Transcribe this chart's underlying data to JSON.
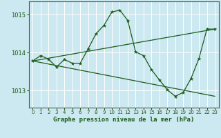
{
  "title": "Graphe pression niveau de la mer (hPa)",
  "bg_color": "#cce8f0",
  "grid_color": "#ffffff",
  "line_color": "#1a5c1a",
  "xlim": [
    -0.5,
    23.5
  ],
  "ylim": [
    1012.55,
    1015.35
  ],
  "yticks": [
    1013,
    1014,
    1015
  ],
  "xticks": [
    0,
    1,
    2,
    3,
    4,
    5,
    6,
    7,
    8,
    9,
    10,
    11,
    12,
    13,
    14,
    15,
    16,
    17,
    18,
    19,
    20,
    21,
    22,
    23
  ],
  "series_main": {
    "x": [
      0,
      1,
      2,
      3,
      4,
      5,
      6,
      7,
      8,
      9,
      10,
      11,
      12,
      13,
      14,
      15,
      16,
      17,
      18,
      19,
      20,
      21,
      22,
      23
    ],
    "y": [
      1013.78,
      1013.92,
      1013.83,
      1013.62,
      1013.82,
      1013.72,
      1013.72,
      1014.1,
      1014.5,
      1014.72,
      1015.07,
      1015.12,
      1014.85,
      1014.02,
      1013.92,
      1013.55,
      1013.28,
      1013.02,
      1012.85,
      1012.95,
      1013.32,
      1013.85,
      1014.62,
      1014.62
    ]
  },
  "series_upper": {
    "x": [
      0,
      23
    ],
    "y": [
      1013.78,
      1014.62
    ]
  },
  "series_lower": {
    "x": [
      0,
      23
    ],
    "y": [
      1013.78,
      1012.85
    ]
  },
  "title_color": "#1a5c1a",
  "tick_color": "#1a5c1a",
  "spine_color": "#555555"
}
